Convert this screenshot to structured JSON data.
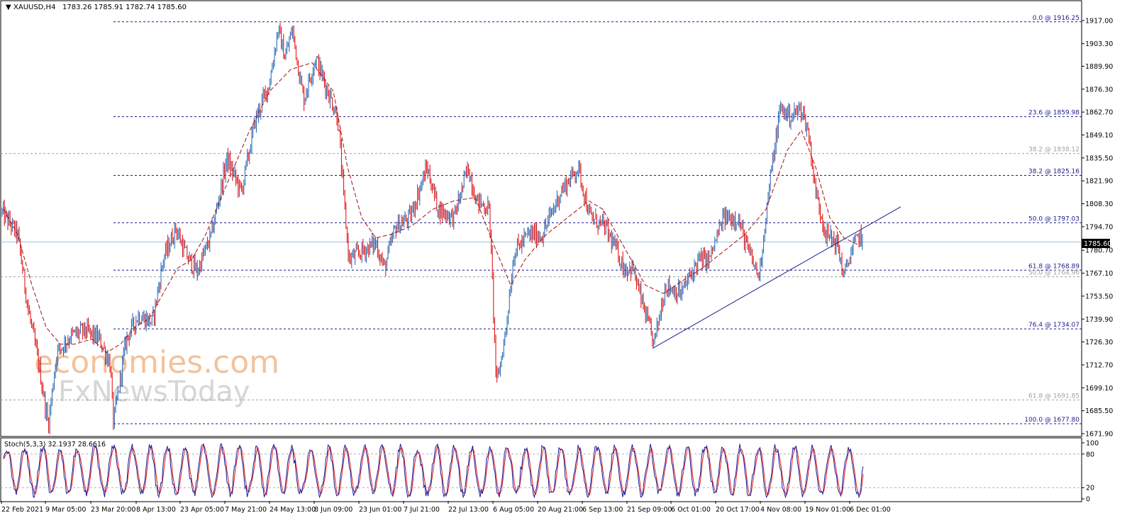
{
  "chart_data": [
    {
      "type": "candlestick",
      "symbol": "XAUUSD,H4",
      "ohlc_label": "1783.26 1785.91 1782.74 1785.60",
      "ylim": [
        1671.9,
        1923
      ],
      "y_ticks": [
        "1917.00",
        "1903.30",
        "1889.90",
        "1876.30",
        "1862.70",
        "1849.10",
        "1835.50",
        "1821.90",
        "1808.30",
        "1794.70",
        "1780.70",
        "1767.10",
        "1753.50",
        "1739.90",
        "1726.30",
        "1712.70",
        "1699.10",
        "1685.50",
        "1671.90"
      ],
      "y_tick_values": [
        1917.0,
        1903.3,
        1889.9,
        1876.3,
        1862.7,
        1849.1,
        1835.5,
        1821.9,
        1808.3,
        1794.7,
        1780.7,
        1767.1,
        1753.5,
        1739.9,
        1726.3,
        1712.7,
        1699.1,
        1685.5,
        1671.9
      ],
      "x_ticks": [
        "22 Feb 2021",
        "9 Mar 05:00",
        "23 Mar 20:00",
        "8 Apr 13:00",
        "23 Apr 05:00",
        "7 May 21:00",
        "24 May 13:00",
        "8 Jun 09:00",
        "23 Jun 01:00",
        "7 Jul 21:00",
        "22 Jul 13:00",
        "6 Aug 05:00",
        "20 Aug 21:00",
        "6 Sep 13:00",
        "21 Sep 09:00",
        "6 Oct 01:00",
        "20 Oct 17:00",
        "4 Nov 08:00",
        "19 Nov 01:00",
        "6 Dec 01:00"
      ],
      "current_price": 1785.6,
      "current_price_label": "1785.60",
      "path_points": [
        [
          0,
          1805
        ],
        [
          25,
          1790
        ],
        [
          40,
          1745
        ],
        [
          55,
          1712
        ],
        [
          68,
          1677
        ],
        [
          80,
          1720
        ],
        [
          100,
          1730
        ],
        [
          120,
          1733
        ],
        [
          140,
          1728
        ],
        [
          155,
          1714
        ],
        [
          160,
          1678
        ],
        [
          178,
          1728
        ],
        [
          195,
          1742
        ],
        [
          215,
          1738
        ],
        [
          230,
          1775
        ],
        [
          248,
          1794
        ],
        [
          262,
          1778
        ],
        [
          278,
          1768
        ],
        [
          298,
          1790
        ],
        [
          320,
          1835
        ],
        [
          340,
          1815
        ],
        [
          360,
          1858
        ],
        [
          380,
          1880
        ],
        [
          392,
          1912
        ],
        [
          402,
          1895
        ],
        [
          412,
          1912
        ],
        [
          428,
          1870
        ],
        [
          445,
          1895
        ],
        [
          462,
          1875
        ],
        [
          476,
          1860
        ],
        [
          485,
          1810
        ],
        [
          492,
          1775
        ],
        [
          510,
          1780
        ],
        [
          530,
          1785
        ],
        [
          542,
          1770
        ],
        [
          558,
          1795
        ],
        [
          578,
          1800
        ],
        [
          602,
          1830
        ],
        [
          618,
          1805
        ],
        [
          640,
          1800
        ],
        [
          660,
          1830
        ],
        [
          672,
          1810
        ],
        [
          690,
          1805
        ],
        [
          700,
          1700
        ],
        [
          712,
          1730
        ],
        [
          725,
          1780
        ],
        [
          745,
          1790
        ],
        [
          765,
          1790
        ],
        [
          790,
          1815
        ],
        [
          815,
          1830
        ],
        [
          832,
          1800
        ],
        [
          852,
          1795
        ],
        [
          870,
          1780
        ],
        [
          880,
          1770
        ],
        [
          892,
          1770
        ],
        [
          905,
          1750
        ],
        [
          922,
          1725
        ],
        [
          938,
          1760
        ],
        [
          960,
          1755
        ],
        [
          985,
          1775
        ],
        [
          1000,
          1775
        ],
        [
          1020,
          1800
        ],
        [
          1040,
          1800
        ],
        [
          1055,
          1780
        ],
        [
          1070,
          1765
        ],
        [
          1085,
          1820
        ],
        [
          1100,
          1865
        ],
        [
          1115,
          1860
        ],
        [
          1130,
          1865
        ],
        [
          1140,
          1850
        ],
        [
          1150,
          1815
        ],
        [
          1165,
          1790
        ],
        [
          1180,
          1785
        ],
        [
          1190,
          1765
        ],
        [
          1200,
          1780
        ],
        [
          1212,
          1790
        ],
        [
          1217,
          1785.6
        ]
      ],
      "moving_average_points": [
        [
          5,
          1805
        ],
        [
          25,
          1790
        ],
        [
          45,
          1760
        ],
        [
          65,
          1735
        ],
        [
          85,
          1725
        ],
        [
          105,
          1725
        ],
        [
          130,
          1728
        ],
        [
          150,
          1720
        ],
        [
          170,
          1725
        ],
        [
          190,
          1735
        ],
        [
          210,
          1740
        ],
        [
          230,
          1755
        ],
        [
          250,
          1770
        ],
        [
          270,
          1775
        ],
        [
          290,
          1790
        ],
        [
          320,
          1820
        ],
        [
          350,
          1850
        ],
        [
          380,
          1875
        ],
        [
          410,
          1888
        ],
        [
          440,
          1892
        ],
        [
          470,
          1875
        ],
        [
          490,
          1830
        ],
        [
          510,
          1800
        ],
        [
          530,
          1788
        ],
        [
          550,
          1790
        ],
        [
          580,
          1795
        ],
        [
          610,
          1805
        ],
        [
          640,
          1810
        ],
        [
          670,
          1812
        ],
        [
          700,
          1780
        ],
        [
          720,
          1760
        ],
        [
          740,
          1775
        ],
        [
          770,
          1790
        ],
        [
          800,
          1800
        ],
        [
          830,
          1810
        ],
        [
          850,
          1805
        ],
        [
          870,
          1790
        ],
        [
          890,
          1775
        ],
        [
          910,
          1760
        ],
        [
          935,
          1755
        ],
        [
          960,
          1762
        ],
        [
          990,
          1770
        ],
        [
          1020,
          1780
        ],
        [
          1050,
          1790
        ],
        [
          1080,
          1805
        ],
        [
          1110,
          1840
        ],
        [
          1130,
          1852
        ],
        [
          1150,
          1830
        ],
        [
          1170,
          1800
        ],
        [
          1190,
          1788
        ],
        [
          1210,
          1784
        ]
      ],
      "trendline": {
        "x1": 920,
        "y1": 1722.5,
        "x2": 1270,
        "y2": 1806.5
      },
      "fibonacci_major": [
        {
          "label": "0.0 @ 1916.25",
          "price": 1916.25
        },
        {
          "label": "23.6 @ 1859.98",
          "price": 1859.98
        },
        {
          "label": "38.2 @ 1825.16",
          "price": 1825.16
        },
        {
          "label": "50.0 @ 1797.03",
          "price": 1797.03
        },
        {
          "label": "61.8 @ 1768.89",
          "price": 1768.89
        },
        {
          "label": "76.4 @ 1734.07",
          "price": 1734.07
        },
        {
          "label": "100.0 @ 1677.80",
          "price": 1677.8
        }
      ],
      "fibonacci_minor": [
        {
          "label": "38.2 @ 1838.12",
          "price": 1838.12
        },
        {
          "label": "50.0 @ 1764.96",
          "price": 1764.96
        },
        {
          "label": "61.8 @ 1691.85",
          "price": 1691.85
        }
      ]
    },
    {
      "type": "line",
      "title": "Stoch(5,3,3) 32.1937 28.6616",
      "ylim": [
        0,
        100
      ],
      "y_ticks": [
        "100",
        "80",
        "20",
        "0"
      ],
      "y_tick_values": [
        100,
        80,
        20,
        0
      ],
      "levels": [
        80,
        20
      ]
    }
  ],
  "watermark": {
    "line1": "economies.com",
    "line2": "FxNewsToday"
  },
  "colors": {
    "bear_candle": "#e00000",
    "bull_candle": "#1f5fb0",
    "fib_major": "#1a1a8c",
    "fib_minor": "#a0a0a0",
    "moving_average": "#a01010",
    "trendline": "#1a1a8c",
    "current_price": "#9ec3dd",
    "stoch_main": "#1a1a9c",
    "stoch_signal": "#e02020",
    "watermark_orange": "#f3c29a",
    "watermark_grey": "#d6d6d6"
  }
}
